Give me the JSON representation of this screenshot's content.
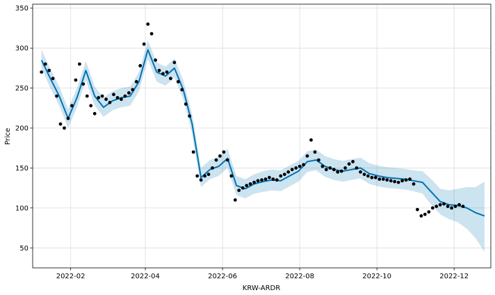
{
  "chart_data": {
    "type": "line",
    "title": "",
    "xlabel": "KRW-ARDR",
    "ylabel": "Price",
    "x_range": [
      "2022-01-02",
      "2022-12-30"
    ],
    "ylim": [
      25,
      355
    ],
    "grid": true,
    "x_ticks": [
      {
        "date": "2022-02-01",
        "label": "2022-02"
      },
      {
        "date": "2022-04-01",
        "label": "2022-04"
      },
      {
        "date": "2022-06-01",
        "label": "2022-06"
      },
      {
        "date": "2022-08-01",
        "label": "2022-08"
      },
      {
        "date": "2022-10-01",
        "label": "2022-10"
      },
      {
        "date": "2022-12-01",
        "label": "2022-12"
      }
    ],
    "y_ticks": [
      50,
      100,
      150,
      200,
      250,
      300,
      350
    ],
    "series": [
      {
        "kind": "observed",
        "color": "#000000",
        "x": [
          "2022-01-09",
          "2022-01-12",
          "2022-01-15",
          "2022-01-18",
          "2022-01-21",
          "2022-01-24",
          "2022-01-27",
          "2022-01-30",
          "2022-02-02",
          "2022-02-05",
          "2022-02-08",
          "2022-02-11",
          "2022-02-14",
          "2022-02-17",
          "2022-02-20",
          "2022-02-23",
          "2022-02-26",
          "2022-03-01",
          "2022-03-04",
          "2022-03-07",
          "2022-03-10",
          "2022-03-13",
          "2022-03-16",
          "2022-03-19",
          "2022-03-22",
          "2022-03-25",
          "2022-03-28",
          "2022-03-31",
          "2022-04-03",
          "2022-04-06",
          "2022-04-09",
          "2022-04-12",
          "2022-04-15",
          "2022-04-18",
          "2022-04-21",
          "2022-04-24",
          "2022-04-27",
          "2022-04-30",
          "2022-05-03",
          "2022-05-06",
          "2022-05-09",
          "2022-05-12",
          "2022-05-15",
          "2022-05-18",
          "2022-05-21",
          "2022-05-24",
          "2022-05-27",
          "2022-05-30",
          "2022-06-02",
          "2022-06-05",
          "2022-06-08",
          "2022-06-11",
          "2022-06-14",
          "2022-06-17",
          "2022-06-20",
          "2022-06-23",
          "2022-06-26",
          "2022-06-29",
          "2022-07-02",
          "2022-07-05",
          "2022-07-08",
          "2022-07-11",
          "2022-07-14",
          "2022-07-17",
          "2022-07-20",
          "2022-07-23",
          "2022-07-26",
          "2022-07-29",
          "2022-08-01",
          "2022-08-04",
          "2022-08-07",
          "2022-08-10",
          "2022-08-13",
          "2022-08-16",
          "2022-08-19",
          "2022-08-22",
          "2022-08-25",
          "2022-08-28",
          "2022-08-31",
          "2022-09-03",
          "2022-09-06",
          "2022-09-09",
          "2022-09-12",
          "2022-09-15",
          "2022-09-18",
          "2022-09-21",
          "2022-09-24",
          "2022-09-27",
          "2022-09-30",
          "2022-10-03",
          "2022-10-06",
          "2022-10-09",
          "2022-10-12",
          "2022-10-15",
          "2022-10-18",
          "2022-10-21",
          "2022-10-24",
          "2022-10-27",
          "2022-10-30",
          "2022-11-02",
          "2022-11-05",
          "2022-11-08",
          "2022-11-11",
          "2022-11-14",
          "2022-11-17",
          "2022-11-20",
          "2022-11-23",
          "2022-11-26",
          "2022-11-29",
          "2022-12-02",
          "2022-12-05",
          "2022-12-08"
        ],
        "y": [
          270,
          280,
          272,
          262,
          240,
          205,
          200,
          212,
          228,
          260,
          280,
          255,
          240,
          228,
          218,
          238,
          240,
          236,
          232,
          242,
          238,
          236,
          240,
          244,
          248,
          258,
          278,
          305,
          330,
          318,
          285,
          272,
          268,
          270,
          262,
          282,
          258,
          248,
          230,
          215,
          170,
          140,
          135,
          140,
          142,
          150,
          160,
          165,
          170,
          160,
          140,
          110,
          122,
          125,
          128,
          130,
          132,
          134,
          135,
          136,
          138,
          136,
          135,
          140,
          142,
          145,
          148,
          150,
          152,
          154,
          165,
          185,
          170,
          160,
          152,
          148,
          150,
          148,
          145,
          146,
          150,
          155,
          158,
          150,
          145,
          142,
          140,
          138,
          138,
          136,
          136,
          135,
          134,
          133,
          132,
          134,
          135,
          136,
          130,
          98,
          90,
          92,
          95,
          100,
          102,
          104,
          105,
          102,
          100,
          102,
          104,
          102
        ]
      },
      {
        "kind": "forecast",
        "color": "#0072B2",
        "x": [
          "2022-01-09",
          "2022-01-16",
          "2022-01-23",
          "2022-01-30",
          "2022-02-06",
          "2022-02-13",
          "2022-02-20",
          "2022-02-27",
          "2022-03-06",
          "2022-03-13",
          "2022-03-20",
          "2022-03-27",
          "2022-04-03",
          "2022-04-10",
          "2022-04-17",
          "2022-04-24",
          "2022-05-01",
          "2022-05-08",
          "2022-05-15",
          "2022-05-22",
          "2022-05-29",
          "2022-06-05",
          "2022-06-12",
          "2022-06-19",
          "2022-06-26",
          "2022-07-03",
          "2022-07-10",
          "2022-07-17",
          "2022-07-24",
          "2022-07-31",
          "2022-08-07",
          "2022-08-14",
          "2022-08-21",
          "2022-08-28",
          "2022-09-04",
          "2022-09-11",
          "2022-09-18",
          "2022-09-25",
          "2022-10-02",
          "2022-10-09",
          "2022-10-16",
          "2022-10-23",
          "2022-10-30",
          "2022-11-06",
          "2022-11-13",
          "2022-11-20",
          "2022-11-27",
          "2022-12-04",
          "2022-12-11",
          "2022-12-18",
          "2022-12-25"
        ],
        "y": [
          285,
          262,
          240,
          212,
          238,
          272,
          240,
          226,
          234,
          238,
          240,
          258,
          298,
          270,
          265,
          275,
          248,
          205,
          138,
          148,
          152,
          162,
          128,
          124,
          130,
          133,
          135,
          134,
          140,
          146,
          158,
          160,
          152,
          148,
          146,
          148,
          150,
          143,
          140,
          138,
          137,
          136,
          134,
          132,
          120,
          108,
          104,
          103,
          100,
          94,
          90
        ]
      },
      {
        "kind": "uncertainty_band",
        "color": "#0072B2",
        "x": [
          "2022-01-09",
          "2022-01-16",
          "2022-01-23",
          "2022-01-30",
          "2022-02-06",
          "2022-02-13",
          "2022-02-20",
          "2022-02-27",
          "2022-03-06",
          "2022-03-13",
          "2022-03-20",
          "2022-03-27",
          "2022-04-03",
          "2022-04-10",
          "2022-04-17",
          "2022-04-24",
          "2022-05-01",
          "2022-05-08",
          "2022-05-15",
          "2022-05-22",
          "2022-05-29",
          "2022-06-05",
          "2022-06-12",
          "2022-06-19",
          "2022-06-26",
          "2022-07-03",
          "2022-07-10",
          "2022-07-17",
          "2022-07-24",
          "2022-07-31",
          "2022-08-07",
          "2022-08-14",
          "2022-08-21",
          "2022-08-28",
          "2022-09-04",
          "2022-09-11",
          "2022-09-18",
          "2022-09-25",
          "2022-10-02",
          "2022-10-09",
          "2022-10-16",
          "2022-10-23",
          "2022-10-30",
          "2022-11-06",
          "2022-11-13",
          "2022-11-20",
          "2022-11-27",
          "2022-12-04",
          "2022-12-11",
          "2022-12-18",
          "2022-12-25"
        ],
        "lower": [
          275,
          250,
          228,
          200,
          226,
          260,
          228,
          214,
          222,
          226,
          228,
          246,
          286,
          258,
          253,
          263,
          236,
          193,
          126,
          136,
          140,
          150,
          116,
          112,
          118,
          120,
          122,
          121,
          127,
          133,
          145,
          147,
          139,
          135,
          133,
          135,
          137,
          130,
          127,
          125,
          124,
          123,
          121,
          118,
          104,
          92,
          86,
          82,
          74,
          62,
          45
        ],
        "upper": [
          298,
          274,
          252,
          224,
          250,
          284,
          252,
          238,
          246,
          250,
          252,
          270,
          310,
          282,
          277,
          287,
          260,
          217,
          150,
          160,
          164,
          174,
          140,
          136,
          142,
          146,
          148,
          147,
          153,
          159,
          171,
          173,
          165,
          161,
          159,
          161,
          163,
          156,
          153,
          151,
          150,
          149,
          147,
          146,
          136,
          124,
          122,
          124,
          126,
          126,
          133
        ]
      }
    ]
  }
}
